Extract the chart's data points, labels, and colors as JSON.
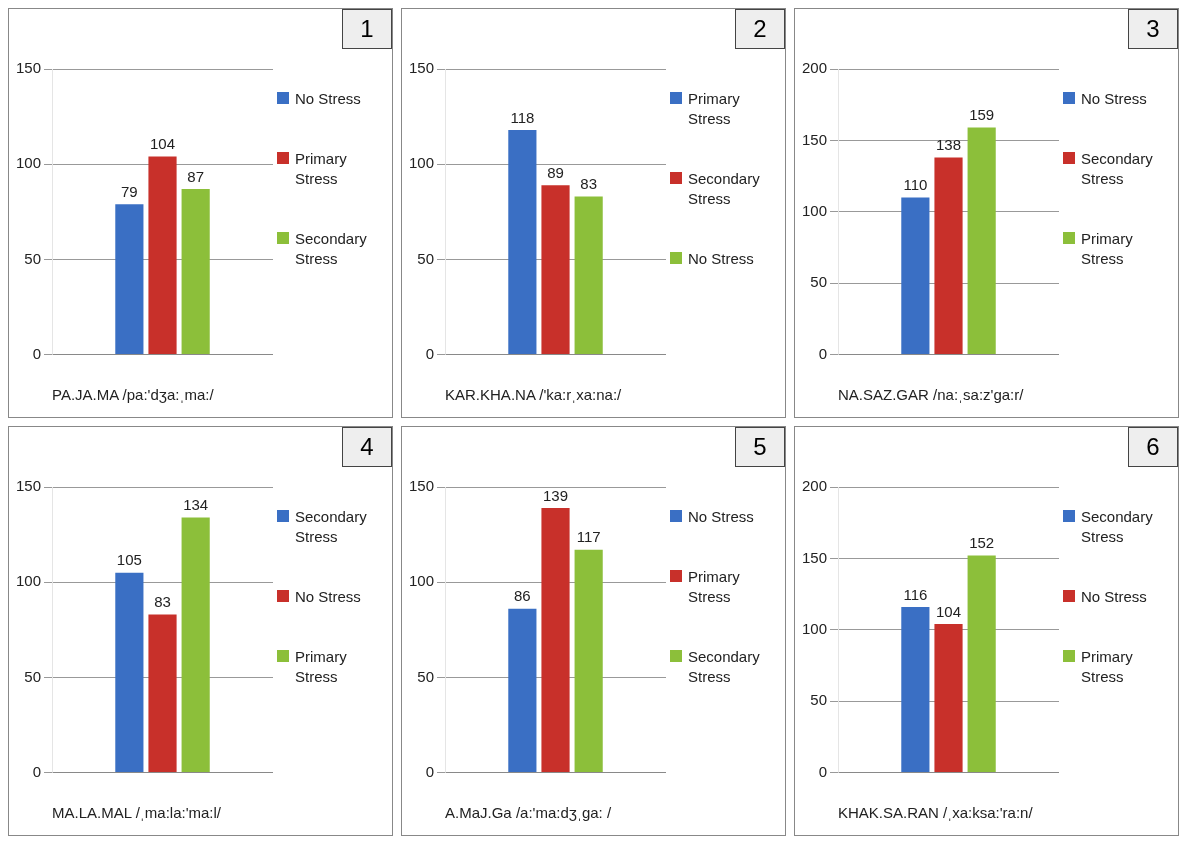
{
  "chart_data": [
    {
      "type": "bar",
      "xlabel": "PA.JA.MA /pa:'dʒa:ˌma:/",
      "annotations": [
        "1"
      ],
      "categories": [
        null
      ],
      "ylim": [
        0,
        150
      ],
      "yticks": [
        0,
        50,
        100,
        150
      ],
      "grid": "y",
      "legend": "right",
      "data_labels": true,
      "series": [
        {
          "name": "No Stress",
          "color": "#3a6fc4",
          "values": [
            79
          ]
        },
        {
          "name": "Primary Stress",
          "color": "#c8302a",
          "values": [
            104
          ]
        },
        {
          "name": "Secondary Stress",
          "color": "#8cbf3a",
          "values": [
            87
          ]
        }
      ]
    },
    {
      "type": "bar",
      "xlabel": "KAR.KHA.NA /'ka:rˌxa:na:/",
      "annotations": [
        "2"
      ],
      "categories": [
        null
      ],
      "ylim": [
        0,
        150
      ],
      "yticks": [
        0,
        50,
        100,
        150
      ],
      "grid": "y",
      "legend": "right",
      "data_labels": true,
      "series": [
        {
          "name": "Primary Stress",
          "color": "#3a6fc4",
          "values": [
            118
          ]
        },
        {
          "name": "Secondary Stress",
          "color": "#c8302a",
          "values": [
            89
          ]
        },
        {
          "name": "No Stress",
          "color": "#8cbf3a",
          "values": [
            83
          ]
        }
      ]
    },
    {
      "type": "bar",
      "xlabel": "NA.SAZ.GAR /na:ˌsa:z'ga:r/",
      "annotations": [
        "3"
      ],
      "categories": [
        null
      ],
      "ylim": [
        0,
        200
      ],
      "yticks": [
        0,
        50,
        100,
        150,
        200
      ],
      "grid": "y",
      "legend": "right",
      "data_labels": true,
      "series": [
        {
          "name": "No Stress",
          "color": "#3a6fc4",
          "values": [
            110
          ]
        },
        {
          "name": "Secondary Stress",
          "color": "#c8302a",
          "values": [
            138
          ]
        },
        {
          "name": "Primary Stress",
          "color": "#8cbf3a",
          "values": [
            159
          ]
        }
      ]
    },
    {
      "type": "bar",
      "xlabel": "MA.LA.MAL /ˌma:la:'ma:l/",
      "annotations": [
        "4"
      ],
      "categories": [
        null
      ],
      "ylim": [
        0,
        150
      ],
      "yticks": [
        0,
        50,
        100,
        150
      ],
      "grid": "y",
      "legend": "right",
      "data_labels": true,
      "series": [
        {
          "name": "Secondary Stress",
          "color": "#3a6fc4",
          "values": [
            105
          ]
        },
        {
          "name": "No Stress",
          "color": "#c8302a",
          "values": [
            83
          ]
        },
        {
          "name": "Primary Stress",
          "color": "#8cbf3a",
          "values": [
            134
          ]
        }
      ]
    },
    {
      "type": "bar",
      "xlabel": "A.MaJ.Ga /a:'ma:dʒˌga: /",
      "annotations": [
        "5"
      ],
      "categories": [
        null
      ],
      "ylim": [
        0,
        150
      ],
      "yticks": [
        0,
        50,
        100,
        150
      ],
      "grid": "y",
      "legend": "right",
      "data_labels": true,
      "series": [
        {
          "name": "No Stress",
          "color": "#3a6fc4",
          "values": [
            86
          ]
        },
        {
          "name": "Primary Stress",
          "color": "#c8302a",
          "values": [
            139
          ]
        },
        {
          "name": "Secondary Stress",
          "color": "#8cbf3a",
          "values": [
            117
          ]
        }
      ]
    },
    {
      "type": "bar",
      "xlabel": "KHAK.SA.RAN /ˌxa:ksa:'ra:n/",
      "annotations": [
        "6"
      ],
      "categories": [
        null
      ],
      "ylim": [
        0,
        200
      ],
      "yticks": [
        0,
        50,
        100,
        150,
        200
      ],
      "grid": "y",
      "legend": "right",
      "data_labels": true,
      "series": [
        {
          "name": "Secondary Stress",
          "color": "#3a6fc4",
          "values": [
            116
          ]
        },
        {
          "name": "No Stress",
          "color": "#c8302a",
          "values": [
            104
          ]
        },
        {
          "name": "Primary Stress",
          "color": "#8cbf3a",
          "values": [
            152
          ]
        }
      ]
    }
  ]
}
